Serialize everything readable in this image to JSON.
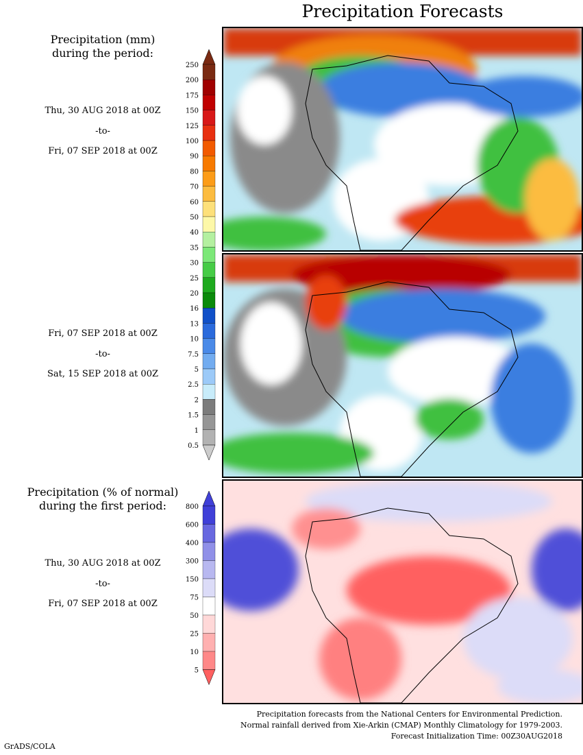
{
  "title": "Precipitation Forecasts",
  "section1": {
    "heading_line1": "Precipitation (mm)",
    "heading_line2": "during the period:",
    "period1": {
      "start": "Thu, 30 AUG 2018 at 00Z",
      "to": "-to-",
      "end": "Fri, 07 SEP 2018 at 00Z"
    },
    "period2": {
      "start": "Fri, 07 SEP 2018 at 00Z",
      "to": "-to-",
      "end": "Sat, 15 SEP 2018 at 00Z"
    },
    "scale": {
      "labels": [
        "250",
        "200",
        "175",
        "150",
        "125",
        "100",
        "90",
        "80",
        "70",
        "60",
        "50",
        "40",
        "35",
        "30",
        "25",
        "20",
        "16",
        "13",
        "10",
        "7.5",
        "5",
        "2.5",
        "2",
        "1.5",
        "1",
        "0.5"
      ],
      "colors": [
        "#7a2a12",
        "#a00000",
        "#c00000",
        "#d81818",
        "#e83010",
        "#f25a00",
        "#f77a00",
        "#fc9c18",
        "#fcbc40",
        "#fde07a",
        "#fdf8a8",
        "#b4f0a0",
        "#7ce878",
        "#46cc46",
        "#1eaa1e",
        "#0a8a0a",
        "#1050c8",
        "#2a6adc",
        "#4a8ae8",
        "#72acf0",
        "#9ccaf8",
        "#c8ecfa",
        "#7c7c7c",
        "#969696",
        "#b2b2b2",
        "#cccccc"
      ]
    }
  },
  "section2": {
    "heading_line1": "Precipitation (% of normal)",
    "heading_line2": "during the first period:",
    "period": {
      "start": "Thu, 30 AUG 2018 at 00Z",
      "to": "-to-",
      "end": "Fri, 07 SEP 2018 at 00Z"
    },
    "scale": {
      "labels": [
        "800",
        "600",
        "400",
        "300",
        "150",
        "75",
        "50",
        "25",
        "10",
        "5"
      ],
      "colors": [
        "#4040d8",
        "#6868e0",
        "#9090e8",
        "#b8b8f0",
        "#dcdcf8",
        "#ffffff",
        "#ffd8d8",
        "#ffb0b0",
        "#ff8888",
        "#ff6060"
      ]
    }
  },
  "footer": {
    "line1": "Precipitation forecasts from the National Centers for Environmental Prediction.",
    "line2": "Normal rainfall derived from Xie-Arkin (CMAP) Monthly Climatology for 1979-2003.",
    "line3": "Forecast Initialization Time: 00Z30AUG2018"
  },
  "credit": "GrADS/COLA"
}
